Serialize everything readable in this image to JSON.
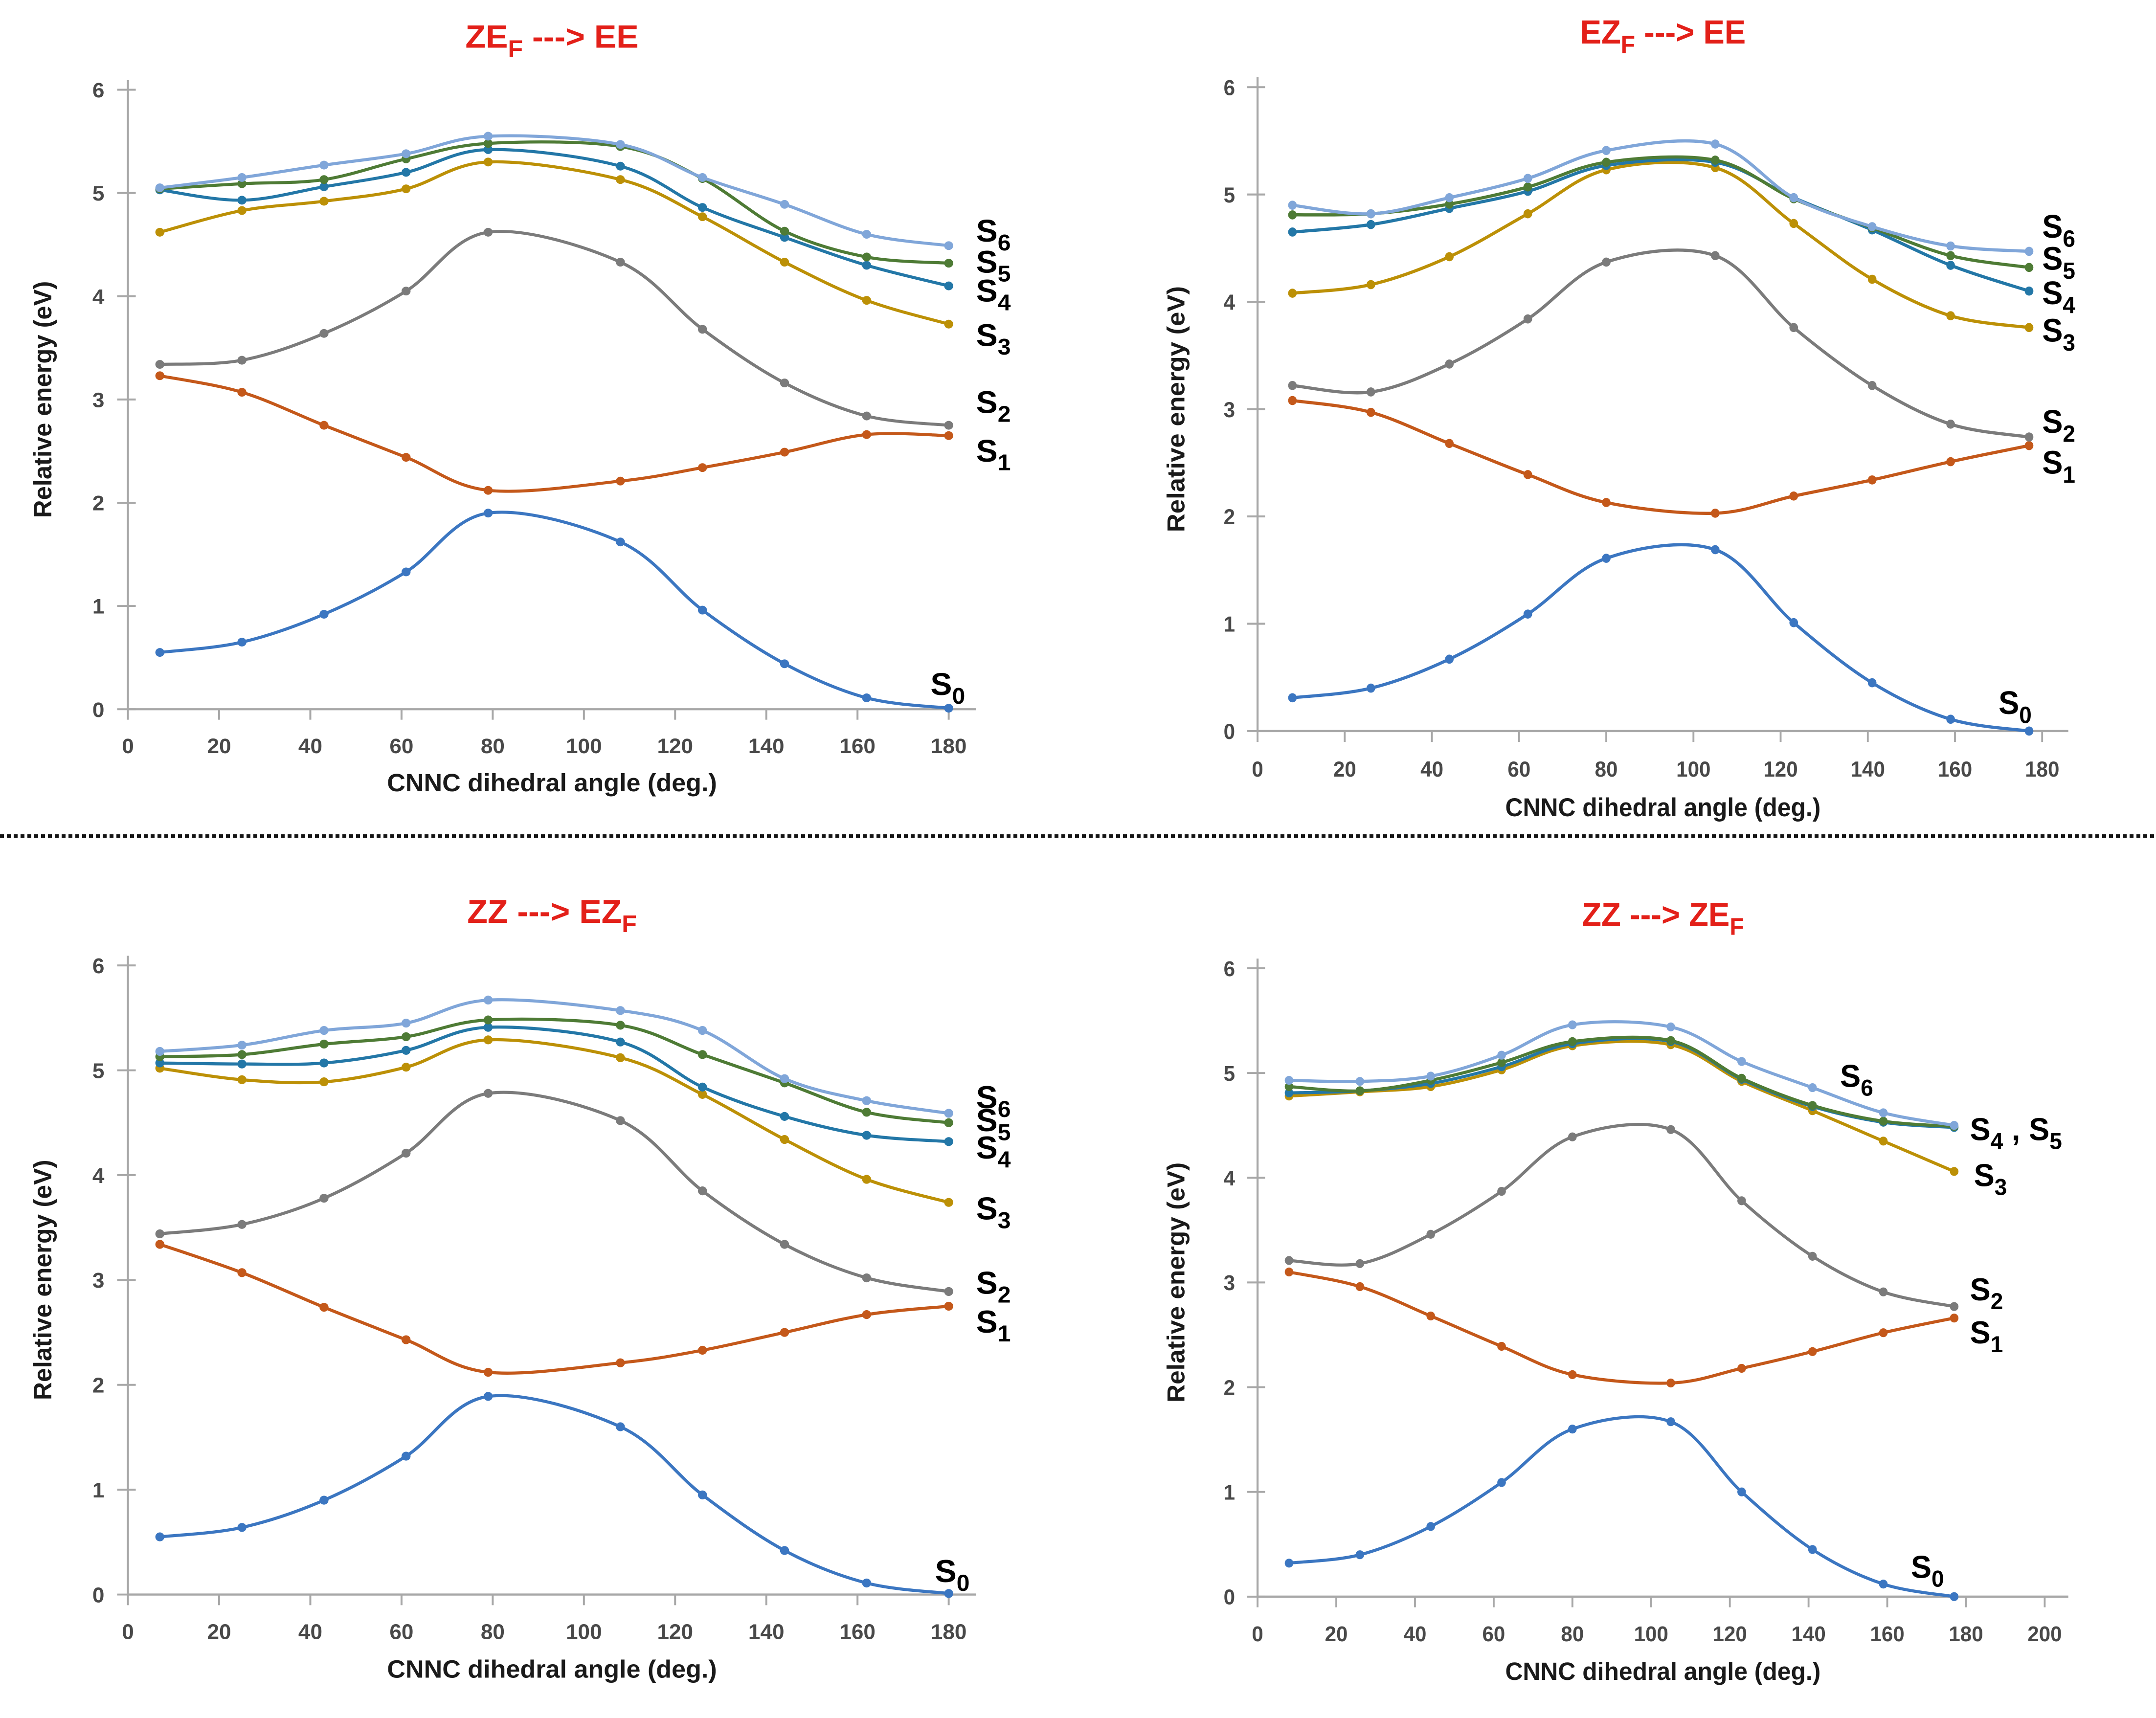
{
  "style": {
    "background": "#FFFFFF",
    "title_color": "#E32019",
    "axis_line_color": "#A8A8A8",
    "tick_label_color": "#494949",
    "axis_title_color": "#1A1A1A",
    "series_label_color": "#000000",
    "series_colors": {
      "S0": "#3B76C1",
      "S1": "#C4581A",
      "S2": "#7B7B7B",
      "S3": "#BC9006",
      "S4": "#2377A7",
      "S5": "#4E7B35",
      "S6": "#80A6D9"
    }
  },
  "chart_data": [
    {
      "type": "line",
      "position": "top-left",
      "title_parts": [
        [
          "ZE",
          "F"
        ],
        [
          "  ---> EE",
          ""
        ]
      ],
      "xlabel": "CNNC dihedral angle (deg.)",
      "ylabel": "Relative energy (eV)",
      "xlim": [
        0,
        186
      ],
      "ylim": [
        0,
        6
      ],
      "x_ticks": [
        0,
        20,
        40,
        60,
        80,
        100,
        120,
        140,
        160,
        180
      ],
      "y_ticks": [
        0,
        1,
        2,
        3,
        4,
        5,
        6
      ],
      "x": [
        7,
        25,
        43,
        61,
        79,
        108,
        126,
        144,
        162,
        180
      ],
      "series": [
        {
          "name": "S0",
          "label_parts": [
            [
              "S",
              "0"
            ]
          ],
          "label_at": [
            176,
            0.24
          ],
          "values": [
            0.55,
            0.65,
            0.92,
            1.33,
            1.9,
            1.62,
            0.96,
            0.44,
            0.11,
            0.01
          ]
        },
        {
          "name": "S1",
          "label_parts": [
            [
              "S",
              "1"
            ]
          ],
          "label_at": [
            186,
            2.5
          ],
          "values": [
            3.23,
            3.07,
            2.75,
            2.44,
            2.12,
            2.21,
            2.34,
            2.49,
            2.66,
            2.65
          ]
        },
        {
          "name": "S2",
          "label_parts": [
            [
              "S",
              "2"
            ]
          ],
          "label_at": [
            186,
            2.97
          ],
          "values": [
            3.34,
            3.38,
            3.64,
            4.05,
            4.62,
            4.33,
            3.68,
            3.16,
            2.84,
            2.75
          ]
        },
        {
          "name": "S3",
          "label_parts": [
            [
              "S",
              "3"
            ]
          ],
          "label_at": [
            186,
            3.62
          ],
          "values": [
            4.62,
            4.83,
            4.92,
            5.04,
            5.3,
            5.13,
            4.77,
            4.33,
            3.96,
            3.73
          ]
        },
        {
          "name": "S4",
          "label_parts": [
            [
              "S",
              "4"
            ]
          ],
          "label_at": [
            186,
            4.05
          ],
          "values": [
            5.03,
            4.93,
            5.06,
            5.2,
            5.42,
            5.26,
            4.86,
            4.57,
            4.3,
            4.1
          ]
        },
        {
          "name": "S5",
          "label_parts": [
            [
              "S",
              "5"
            ]
          ],
          "label_at": [
            186,
            4.33
          ],
          "values": [
            5.04,
            5.09,
            5.13,
            5.33,
            5.48,
            5.45,
            5.14,
            4.63,
            4.38,
            4.32
          ]
        },
        {
          "name": "S6",
          "label_parts": [
            [
              "S",
              "6"
            ]
          ],
          "label_at": [
            186,
            4.63
          ],
          "values": [
            5.05,
            5.15,
            5.27,
            5.38,
            5.55,
            5.47,
            5.15,
            4.89,
            4.6,
            4.49
          ]
        }
      ]
    },
    {
      "type": "line",
      "position": "top-right",
      "title_parts": [
        [
          "EZ",
          "F"
        ],
        [
          "  ---> EE",
          ""
        ]
      ],
      "xlabel": "CNNC dihedral angle (deg.)",
      "ylabel": "Relative energy (eV)",
      "xlim": [
        0,
        186
      ],
      "ylim": [
        0,
        6
      ],
      "x_ticks": [
        0,
        20,
        40,
        60,
        80,
        100,
        120,
        140,
        160,
        180
      ],
      "y_ticks": [
        0,
        1,
        2,
        3,
        4,
        5,
        6
      ],
      "x": [
        8,
        26,
        44,
        62,
        80,
        105,
        123,
        141,
        159,
        177
      ],
      "series": [
        {
          "name": "S0",
          "label_parts": [
            [
              "S",
              "0"
            ]
          ],
          "label_at": [
            170,
            0.26
          ],
          "values": [
            0.31,
            0.4,
            0.67,
            1.09,
            1.61,
            1.69,
            1.01,
            0.45,
            0.11,
            0.0
          ]
        },
        {
          "name": "S1",
          "label_parts": [
            [
              "S",
              "1"
            ]
          ],
          "label_at": [
            180,
            2.5
          ],
          "values": [
            3.08,
            2.97,
            2.68,
            2.39,
            2.13,
            2.03,
            2.19,
            2.34,
            2.51,
            2.66
          ]
        },
        {
          "name": "S2",
          "label_parts": [
            [
              "S",
              "2"
            ]
          ],
          "label_at": [
            180,
            2.88
          ],
          "values": [
            3.22,
            3.16,
            3.42,
            3.84,
            4.37,
            4.43,
            3.76,
            3.22,
            2.86,
            2.74
          ]
        },
        {
          "name": "S3",
          "label_parts": [
            [
              "S",
              "3"
            ]
          ],
          "label_at": [
            180,
            3.73
          ],
          "values": [
            4.08,
            4.16,
            4.42,
            4.82,
            5.23,
            5.25,
            4.73,
            4.21,
            3.87,
            3.76
          ]
        },
        {
          "name": "S4",
          "label_parts": [
            [
              "S",
              "4"
            ]
          ],
          "label_at": [
            180,
            4.08
          ],
          "values": [
            4.65,
            4.72,
            4.87,
            5.03,
            5.27,
            5.3,
            4.97,
            4.67,
            4.34,
            4.1
          ]
        },
        {
          "name": "S5",
          "label_parts": [
            [
              "S",
              "5"
            ]
          ],
          "label_at": [
            180,
            4.4
          ],
          "values": [
            4.81,
            4.82,
            4.91,
            5.07,
            5.3,
            5.32,
            4.96,
            4.69,
            4.43,
            4.32
          ]
        },
        {
          "name": "S6",
          "label_parts": [
            [
              "S",
              "6"
            ]
          ],
          "label_at": [
            180,
            4.7
          ],
          "values": [
            4.9,
            4.82,
            4.97,
            5.15,
            5.41,
            5.47,
            4.97,
            4.7,
            4.52,
            4.47
          ]
        }
      ]
    },
    {
      "type": "line",
      "position": "bottom-left",
      "title_parts": [
        [
          "ZZ ---> EZ",
          "F"
        ]
      ],
      "xlabel": "CNNC dihedral angle (deg.)",
      "ylabel": "Relative energy (eV)",
      "xlim": [
        0,
        186
      ],
      "ylim": [
        0,
        6
      ],
      "x_ticks": [
        0,
        20,
        40,
        60,
        80,
        100,
        120,
        140,
        160,
        180
      ],
      "y_ticks": [
        0,
        1,
        2,
        3,
        4,
        5,
        6
      ],
      "x": [
        7,
        25,
        43,
        61,
        79,
        108,
        126,
        144,
        162,
        180
      ],
      "series": [
        {
          "name": "S0",
          "label_parts": [
            [
              "S",
              "0"
            ]
          ],
          "label_at": [
            177,
            0.22
          ],
          "values": [
            0.55,
            0.64,
            0.9,
            1.32,
            1.89,
            1.6,
            0.95,
            0.42,
            0.11,
            0.01
          ]
        },
        {
          "name": "S1",
          "label_parts": [
            [
              "S",
              "1"
            ]
          ],
          "label_at": [
            186,
            2.6
          ],
          "values": [
            3.34,
            3.07,
            2.74,
            2.43,
            2.12,
            2.21,
            2.33,
            2.5,
            2.67,
            2.75
          ]
        },
        {
          "name": "S2",
          "label_parts": [
            [
              "S",
              "2"
            ]
          ],
          "label_at": [
            186,
            2.97
          ],
          "values": [
            3.44,
            3.53,
            3.78,
            4.21,
            4.78,
            4.52,
            3.85,
            3.34,
            3.02,
            2.89
          ]
        },
        {
          "name": "S3",
          "label_parts": [
            [
              "S",
              "3"
            ]
          ],
          "label_at": [
            186,
            3.68
          ],
          "values": [
            5.02,
            4.91,
            4.89,
            5.03,
            5.29,
            5.12,
            4.77,
            4.34,
            3.96,
            3.74
          ]
        },
        {
          "name": "S4",
          "label_parts": [
            [
              "S",
              "4"
            ]
          ],
          "label_at": [
            186,
            4.26
          ],
          "values": [
            5.07,
            5.06,
            5.07,
            5.19,
            5.41,
            5.27,
            4.84,
            4.56,
            4.38,
            4.32
          ]
        },
        {
          "name": "S5",
          "label_parts": [
            [
              "S",
              "5"
            ]
          ],
          "label_at": [
            186,
            4.52
          ],
          "values": [
            5.13,
            5.15,
            5.25,
            5.32,
            5.48,
            5.43,
            5.15,
            4.88,
            4.6,
            4.5
          ]
        },
        {
          "name": "S6",
          "label_parts": [
            [
              "S",
              "6"
            ]
          ],
          "label_at": [
            186,
            4.74
          ],
          "values": [
            5.18,
            5.24,
            5.38,
            5.45,
            5.67,
            5.57,
            5.38,
            4.92,
            4.71,
            4.59
          ]
        }
      ]
    },
    {
      "type": "line",
      "position": "bottom-right",
      "title_parts": [
        [
          "ZZ ---> ZE",
          "F"
        ]
      ],
      "xlabel": "CNNC dihedral angle (deg.)",
      "ylabel": "Relative energy (eV)",
      "xlim": [
        0,
        206
      ],
      "ylim": [
        0,
        6
      ],
      "x_ticks": [
        0,
        20,
        40,
        60,
        80,
        100,
        120,
        140,
        160,
        180,
        200
      ],
      "y_ticks": [
        0,
        1,
        2,
        3,
        4,
        5,
        6
      ],
      "x": [
        8,
        26,
        44,
        62,
        80,
        105,
        123,
        141,
        159,
        177
      ],
      "series": [
        {
          "name": "S0",
          "label_parts": [
            [
              "S",
              "0"
            ]
          ],
          "label_at": [
            166,
            0.28
          ],
          "values": [
            0.32,
            0.4,
            0.67,
            1.09,
            1.6,
            1.67,
            1.0,
            0.45,
            0.12,
            0.0
          ]
        },
        {
          "name": "S1",
          "label_parts": [
            [
              "S",
              "1"
            ]
          ],
          "label_at": [
            181,
            2.52
          ],
          "values": [
            3.1,
            2.96,
            2.68,
            2.39,
            2.12,
            2.04,
            2.18,
            2.34,
            2.52,
            2.66
          ]
        },
        {
          "name": "S2",
          "label_parts": [
            [
              "S",
              "2"
            ]
          ],
          "label_at": [
            181,
            2.93
          ],
          "values": [
            3.21,
            3.18,
            3.46,
            3.87,
            4.39,
            4.46,
            3.78,
            3.25,
            2.91,
            2.77
          ]
        },
        {
          "name": "S3",
          "label_parts": [
            [
              "S",
              "3"
            ]
          ],
          "label_at": [
            182,
            4.02
          ],
          "values": [
            4.78,
            4.82,
            4.87,
            5.03,
            5.26,
            5.27,
            4.92,
            4.64,
            4.35,
            4.06
          ]
        },
        {
          "name": "S4",
          "label_parts": [
            [
              "S",
              "4"
            ],
            [
              " , ",
              ""
            ],
            [
              "S",
              "5"
            ]
          ],
          "label_at": [
            181,
            4.46
          ],
          "values": [
            4.81,
            4.83,
            4.9,
            5.06,
            5.28,
            5.3,
            4.94,
            4.68,
            4.53,
            4.48
          ]
        },
        {
          "name": "S5",
          "label_parts": [],
          "label_at": null,
          "values": [
            4.87,
            4.83,
            4.93,
            5.1,
            5.3,
            5.31,
            4.95,
            4.69,
            4.54,
            4.49
          ]
        },
        {
          "name": "S6",
          "label_parts": [
            [
              "S",
              "6"
            ]
          ],
          "label_at": [
            148,
            4.97
          ],
          "values": [
            4.93,
            4.92,
            4.97,
            5.17,
            5.46,
            5.44,
            5.11,
            4.86,
            4.62,
            4.5
          ]
        }
      ]
    }
  ]
}
